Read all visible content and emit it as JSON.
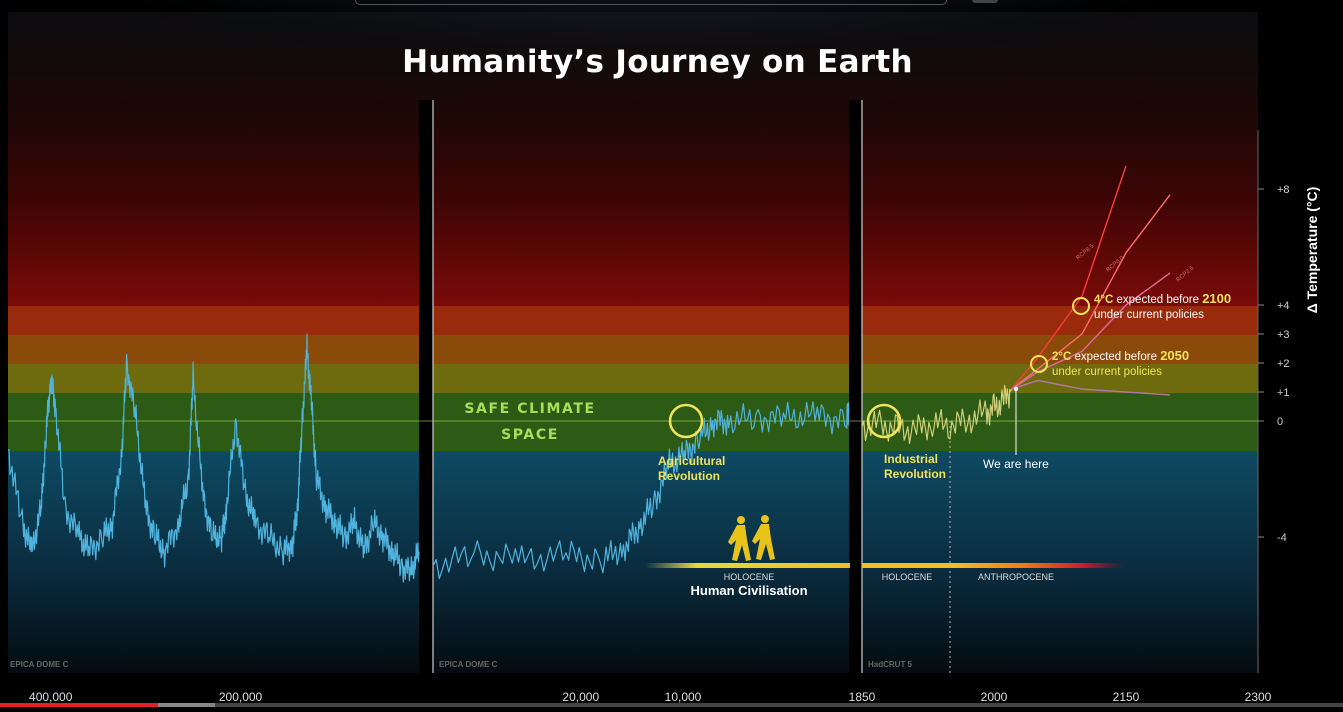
{
  "title": "Humanity’s Journey on Earth",
  "video_progress": 0.118,
  "video_buffered": 0.16,
  "chart_data": {
    "type": "line",
    "ylabel": "Δ Temperature (°C)",
    "y_ticks": [
      "+8",
      "+4",
      "+3",
      "+2",
      "+1",
      "0",
      "-4"
    ],
    "panels": [
      {
        "source": "EPICA DOME C",
        "x_ticks": [
          "400,000",
          "200,000"
        ],
        "xlim": [
          445000,
          12000
        ],
        "series": [
          {
            "x": [
              445000,
              430000,
              420000,
              410000,
              405000,
              400000,
              395000,
              385000,
              370000,
              360000,
              345000,
              335000,
              325000,
              320000,
              310000,
              300000,
              290000,
              280000,
              265000,
              255000,
              250000,
              240000,
              230000,
              220000,
              215000,
              205000,
              195000,
              185000,
              170000,
              155000,
              145000,
              140000,
              135000,
              130000,
              125000,
              120000,
              110000,
              100000,
              90000,
              80000,
              70000,
              60000,
              50000,
              40000,
              30000,
              20000,
              12000
            ],
            "y": [
              -1,
              -3.5,
              -4.5,
              -3,
              -0.5,
              1.5,
              0.5,
              -3,
              -4,
              -4.5,
              -4,
              -3.5,
              -1,
              2,
              0,
              -3,
              -4,
              -4.5,
              -3.5,
              -2,
              1.5,
              -2.5,
              -4,
              -4,
              -3,
              0,
              -2.5,
              -3.5,
              -4,
              -4.5,
              -4.2,
              -3,
              0,
              2.5,
              0.5,
              -2,
              -3,
              -3.5,
              -4,
              -3.5,
              -4.5,
              -3.5,
              -4,
              -4.5,
              -5,
              -5.2,
              -4.5
            ]
          }
        ]
      },
      {
        "source": "EPICA DOME C",
        "x_ticks": [
          "20,000",
          "10,000"
        ],
        "xlim": [
          30000,
          1850
        ],
        "series": [
          {
            "x": [
              30000,
              27000,
              24000,
              21000,
              18500,
              17000,
              16000,
              15000,
              14000,
              13000,
              12000,
              11000,
              10000,
              8000,
              6000,
              4000,
              2000,
              1850
            ],
            "y": [
              -5,
              -4.6,
              -4.8,
              -4.6,
              -4.8,
              -4.3,
              -3.6,
              -2.8,
              -1.5,
              -1.2,
              -0.6,
              0,
              0,
              0.1,
              0.1,
              0.2,
              0,
              0.4
            ]
          }
        ]
      },
      {
        "source": "HadCRUT 5",
        "x_ticks": [
          "1850",
          "2000",
          "2150",
          "2300"
        ],
        "xlim": [
          1850,
          2300
        ],
        "series": [
          {
            "name": "history",
            "x": [
              1850,
              1870,
              1890,
              1910,
              1930,
              1950,
              1970,
              1990,
              2000,
              2010,
              2020
            ],
            "y": [
              -0.2,
              -0.1,
              -0.3,
              -0.3,
              -0.1,
              -0.1,
              0,
              0.3,
              0.4,
              0.7,
              1.1
            ]
          },
          {
            "name": "RCP8.5",
            "x": [
              2020,
              2050,
              2100,
              2150
            ],
            "y": [
              1.1,
              2.2,
              4.3,
              8.8
            ]
          },
          {
            "name": "RCP6.0",
            "x": [
              2020,
              2050,
              2100,
              2150,
              2200
            ],
            "y": [
              1.1,
              1.8,
              3.0,
              5.8,
              7.8
            ]
          },
          {
            "name": "RCP4.5",
            "x": [
              2020,
              2050,
              2100,
              2150,
              2200
            ],
            "y": [
              1.1,
              1.7,
              2.4,
              4.0,
              5.1
            ]
          },
          {
            "name": "RCP2.6",
            "x": [
              2020,
              2050,
              2100,
              2150,
              2200
            ],
            "y": [
              1.1,
              1.4,
              1.1,
              1.0,
              0.9
            ]
          }
        ],
        "scenario_labels": [
          "RCP8.5",
          "RCP6.0",
          "RCP2.6"
        ]
      }
    ],
    "annotations": {
      "safe_line1": "SAFE CLIMATE",
      "safe_line2": "SPACE",
      "agri_line1": "Agricultural",
      "agri_line2": "Revolution",
      "indus_line1": "Industrial",
      "indus_line2": "Revolution",
      "here": "We are here",
      "c4_pre": "4°C",
      "c4_mid": " expected before ",
      "c4_year": "2100",
      "c4_sub": "under current policies",
      "c2_pre": "2°C",
      "c2_mid": " expected before ",
      "c2_year": "2050",
      "c2_sub": "under current policies",
      "holocene1": "HOLOCENE",
      "civilisation": "Human Civilisation",
      "holocene2": "HOLOCENE",
      "anthropocene": "ANTHROPOCENE"
    },
    "colors": {
      "ice_age": "#4fb3dd",
      "safe": "#a6e05a",
      "highlight": "#f2e45a",
      "rcp85": "#ff3b3b",
      "rcp60": "#ff6b6b",
      "rcp45": "#e06aa0",
      "rcp26": "#b07aa8"
    }
  }
}
